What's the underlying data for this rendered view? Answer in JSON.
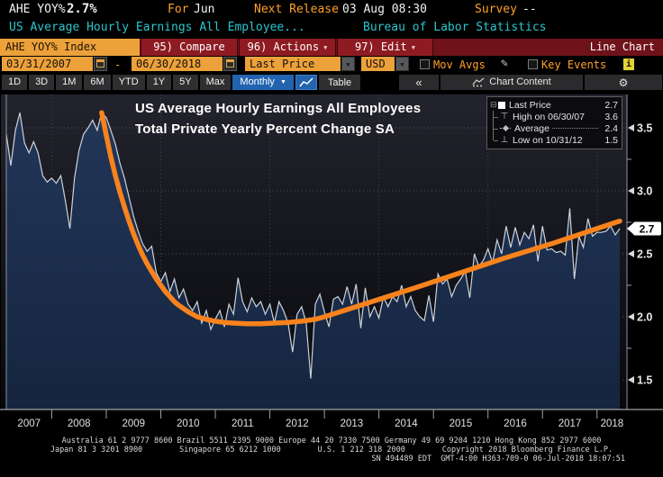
{
  "header": {
    "ticker": "AHE YOY%",
    "last_value": "2.7%",
    "for_label": "For",
    "for_value": "Jun",
    "next_release_label": "Next Release",
    "next_release_value": "03 Aug 08:30",
    "survey_label": "Survey",
    "survey_value": "--",
    "description": "US Average Hourly Earnings All Employee...",
    "source": "Bureau of Labor Statistics"
  },
  "toolbar": {
    "security": "AHE YOY% Index",
    "compare": "95) Compare",
    "actions": "96) Actions",
    "edit": "97) Edit",
    "chart_type": "Line Chart"
  },
  "controls": {
    "date_from": "03/31/2007",
    "date_to": "06/30/2018",
    "date_separator": "-",
    "field": "Last Price",
    "currency": "USD",
    "mov_avgs_label": "Mov Avgs",
    "key_events_label": "Key Events",
    "info_badge": "i"
  },
  "periods": [
    "1D",
    "3D",
    "1M",
    "6M",
    "YTD",
    "1Y",
    "5Y",
    "Max"
  ],
  "frequency": "Monthly",
  "table_label": "Table",
  "right_tools": {
    "collapse": "«",
    "chart_content": "Chart Content",
    "gear": "⚙"
  },
  "icons": {
    "caret_down": "▼",
    "collapse_box": "⊟",
    "high_marker": "⊤",
    "low_marker": "⊥",
    "pencil": "✎"
  },
  "annotation": {
    "line1": "US Average Hourly Earnings All Employees",
    "line2": "Total Private Yearly Percent Change SA"
  },
  "legend": {
    "rows": [
      {
        "label": "Last Price",
        "value": "2.7"
      },
      {
        "label": "High on 06/30/07",
        "value": "3.6"
      },
      {
        "label": "Average",
        "value": "2.4"
      },
      {
        "label": "Low on 10/31/12",
        "value": "1.5"
      }
    ]
  },
  "chart_data": {
    "type": "area",
    "title": "US Average Hourly Earnings All Employees",
    "subtitle": "Total Private Yearly Percent Change SA",
    "x_start": "2007-03",
    "x_end": "2018-06",
    "frequency": "monthly",
    "unit": "percent YoY",
    "ylim": [
      1.26,
      3.76
    ],
    "y_ticks": [
      3.5,
      3.0,
      2.5,
      2.0,
      1.5
    ],
    "y_minor_ticks": [
      3.25,
      2.75,
      2.25,
      1.75
    ],
    "last_price": 2.7,
    "x_year_labels": [
      "2007",
      "2008",
      "2009",
      "2010",
      "2011",
      "2012",
      "2013",
      "2014",
      "2015",
      "2016",
      "2017",
      "2018"
    ],
    "stats": {
      "last": 2.7,
      "high_date": "06/30/07",
      "high": 3.6,
      "average": 2.4,
      "low_date": "10/31/12",
      "low": 1.5
    },
    "values": [
      3.45,
      3.2,
      3.48,
      3.62,
      3.38,
      3.3,
      3.39,
      3.3,
      3.12,
      3.07,
      3.1,
      3.06,
      3.12,
      2.92,
      2.7,
      3.1,
      3.32,
      3.45,
      3.5,
      3.56,
      3.48,
      3.62,
      3.58,
      3.48,
      3.37,
      3.22,
      3.1,
      2.95,
      2.8,
      2.68,
      2.58,
      2.52,
      2.56,
      2.35,
      2.28,
      2.35,
      2.2,
      2.3,
      2.15,
      2.22,
      2.1,
      2.05,
      2.12,
      1.95,
      2.05,
      1.9,
      1.98,
      2.05,
      1.92,
      2.1,
      2.02,
      2.31,
      2.12,
      2.04,
      2.15,
      2.08,
      2.12,
      2.02,
      2.1,
      1.95,
      2.12,
      2.05,
      1.95,
      1.72,
      2.02,
      2.08,
      1.95,
      1.51,
      2.1,
      2.18,
      2.04,
      1.92,
      2.14,
      2.16,
      2.1,
      2.24,
      2.1,
      2.26,
      1.91,
      2.23,
      2.0,
      2.08,
      1.99,
      2.16,
      2.08,
      2.16,
      2.12,
      2.25,
      2.08,
      2.16,
      2.05,
      2.0,
      1.97,
      2.17,
      1.96,
      2.34,
      2.26,
      2.3,
      2.16,
      2.25,
      2.3,
      2.36,
      2.15,
      2.5,
      2.4,
      2.45,
      2.54,
      2.43,
      2.61,
      2.5,
      2.72,
      2.55,
      2.71,
      2.57,
      2.67,
      2.62,
      2.73,
      2.44,
      2.72,
      2.53,
      2.54,
      2.51,
      2.52,
      2.49,
      2.86,
      2.3,
      2.64,
      2.55,
      2.78,
      2.64,
      2.67,
      2.67,
      2.68,
      2.72,
      2.65,
      2.7
    ],
    "trend_line": {
      "name": "regression trend",
      "color": "#f8821c",
      "points": [
        [
          21,
          3.62
        ],
        [
          22,
          3.44
        ],
        [
          23,
          3.27
        ],
        [
          24,
          3.12
        ],
        [
          25,
          2.99
        ],
        [
          26,
          2.87
        ],
        [
          27,
          2.76
        ],
        [
          28,
          2.66
        ],
        [
          29,
          2.57
        ],
        [
          30,
          2.49
        ],
        [
          31,
          2.42
        ],
        [
          32,
          2.36
        ],
        [
          33,
          2.3
        ],
        [
          34,
          2.25
        ],
        [
          35,
          2.2
        ],
        [
          36,
          2.16
        ],
        [
          37,
          2.12
        ],
        [
          38,
          2.09
        ],
        [
          40,
          2.04
        ],
        [
          42,
          2.0
        ],
        [
          44,
          1.98
        ],
        [
          46,
          1.965
        ],
        [
          48,
          1.955
        ],
        [
          50,
          1.95
        ],
        [
          53,
          1.945
        ],
        [
          56,
          1.945
        ],
        [
          59,
          1.95
        ],
        [
          62,
          1.955
        ],
        [
          65,
          1.965
        ],
        [
          68,
          1.98
        ],
        [
          70,
          2.0
        ],
        [
          80,
          2.115
        ],
        [
          90,
          2.23
        ],
        [
          100,
          2.35
        ],
        [
          110,
          2.47
        ],
        [
          120,
          2.58
        ],
        [
          130,
          2.7
        ],
        [
          135,
          2.76
        ]
      ]
    },
    "colors": {
      "area_fill_top": "#223659",
      "area_fill_bottom": "#15253f",
      "price_line": "#ccd3db",
      "grid": "#4e5460",
      "axis_text": "#e8e8e8",
      "plot_bg_top": "#23232d",
      "plot_bg_bottom": "#07070c"
    }
  },
  "footer": {
    "line1": "Australia 61 2 9777 8600 Brazil 5511 2395 9000 Europe 44 20 7330 7500 Germany 49 69 9204 1210 Hong Kong 852 2977 6000",
    "line2": "Japan 81 3 3201 8900        Singapore 65 6212 1000        U.S. 1 212 318 2000        Copyright 2018 Bloomberg Finance L.P.",
    "line3": "SN 494489 EDT  GMT-4:00 H363-709-0 06-Jul-2018 18:07:51"
  }
}
